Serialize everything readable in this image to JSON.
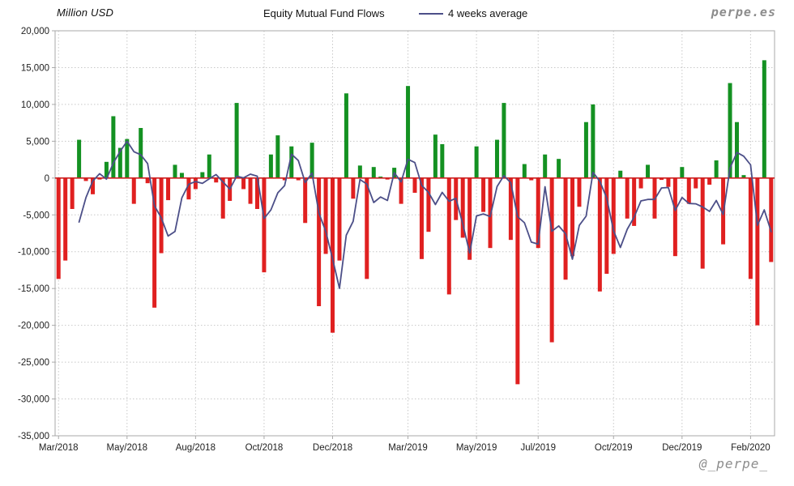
{
  "page": {
    "watermark_top": "perpe.es",
    "watermark_bottom": "@_perpe_"
  },
  "header": {
    "units_label": "Million USD",
    "title": "Equity Mutual Fund Flows",
    "legend": [
      {
        "label": "4 weeks average",
        "type": "line",
        "color": "#4c4f88"
      }
    ]
  },
  "colors": {
    "positive_bar": "#149122",
    "negative_bar": "#e02020",
    "average_line": "#4c4f88",
    "zero_line": "#cc2020",
    "gridline": "#c8c8c8",
    "plot_border": "#a8a8a8",
    "axis_text": "#222222",
    "watermark": "#8c8c8c"
  },
  "chart_data": {
    "type": "bar",
    "title": "Equity Mutual Fund Flows",
    "ylabel": "Million USD",
    "xlabel": "",
    "grid": true,
    "legend_position": "top",
    "x_unit": "week",
    "n_points": 105,
    "ylim": [
      -35000,
      20000
    ],
    "ytick_step": 5000,
    "ytick_labels": [
      "20,000",
      "15,000",
      "10,000",
      "5,000",
      "0",
      "-5,000",
      "-10,000",
      "-15,000",
      "-20,000",
      "-25,000",
      "-30,000",
      "-35,000"
    ],
    "x_ticks": [
      {
        "index": 0,
        "label": "Mar/2018"
      },
      {
        "index": 10,
        "label": "May/2018"
      },
      {
        "index": 20,
        "label": "Aug/2018"
      },
      {
        "index": 30,
        "label": "Oct/2018"
      },
      {
        "index": 40,
        "label": "Dec/2018"
      },
      {
        "index": 51,
        "label": "Mar/2019"
      },
      {
        "index": 61,
        "label": "May/2019"
      },
      {
        "index": 70,
        "label": "Jul/2019"
      },
      {
        "index": 81,
        "label": "Oct/2019"
      },
      {
        "index": 91,
        "label": "Dec/2019"
      },
      {
        "index": 101,
        "label": "Feb/2020"
      }
    ],
    "series": [
      {
        "name": "Weekly equity mutual fund flows (Million USD)",
        "type": "bar",
        "positive_color": "#149122",
        "negative_color": "#e02020",
        "values": [
          -13700,
          -11200,
          -4200,
          5200,
          -400,
          -2200,
          -200,
          2200,
          8400,
          4100,
          5300,
          -3500,
          6800,
          -700,
          -17600,
          -10200,
          -3000,
          1800,
          700,
          -2900,
          -1500,
          800,
          3200,
          -600,
          -5500,
          -3100,
          10200,
          -1500,
          -3500,
          -4200,
          -12800,
          3200,
          5800,
          -300,
          4300,
          -300,
          -6100,
          4800,
          -17400,
          -10300,
          -21000,
          -11200,
          11500,
          -2800,
          1700,
          -13700,
          1500,
          200,
          -200,
          1400,
          -3500,
          12500,
          -2000,
          -11000,
          -7300,
          5900,
          4600,
          -15800,
          -5700,
          -8100,
          -11100,
          4300,
          -4600,
          -9500,
          5200,
          10200,
          -8400,
          -28000,
          1900,
          -300,
          -9500,
          3200,
          -22300,
          2600,
          -13800,
          -10600,
          -3900,
          7600,
          10000,
          -15400,
          -13000,
          -10300,
          1000,
          -5500,
          -6500,
          -1400,
          1800,
          -5500,
          -250,
          -1200,
          -10600,
          1500,
          -3500,
          -1400,
          -12300,
          -900,
          2400,
          -9000,
          12900,
          7600,
          400,
          -13700,
          -20000,
          16000,
          -11400
        ]
      },
      {
        "name": "4 weeks average",
        "type": "line",
        "color": "#4c4f88",
        "derived": "rolling_mean_window_4_of_series_0"
      }
    ],
    "zero_line_color": "#cc2020"
  }
}
